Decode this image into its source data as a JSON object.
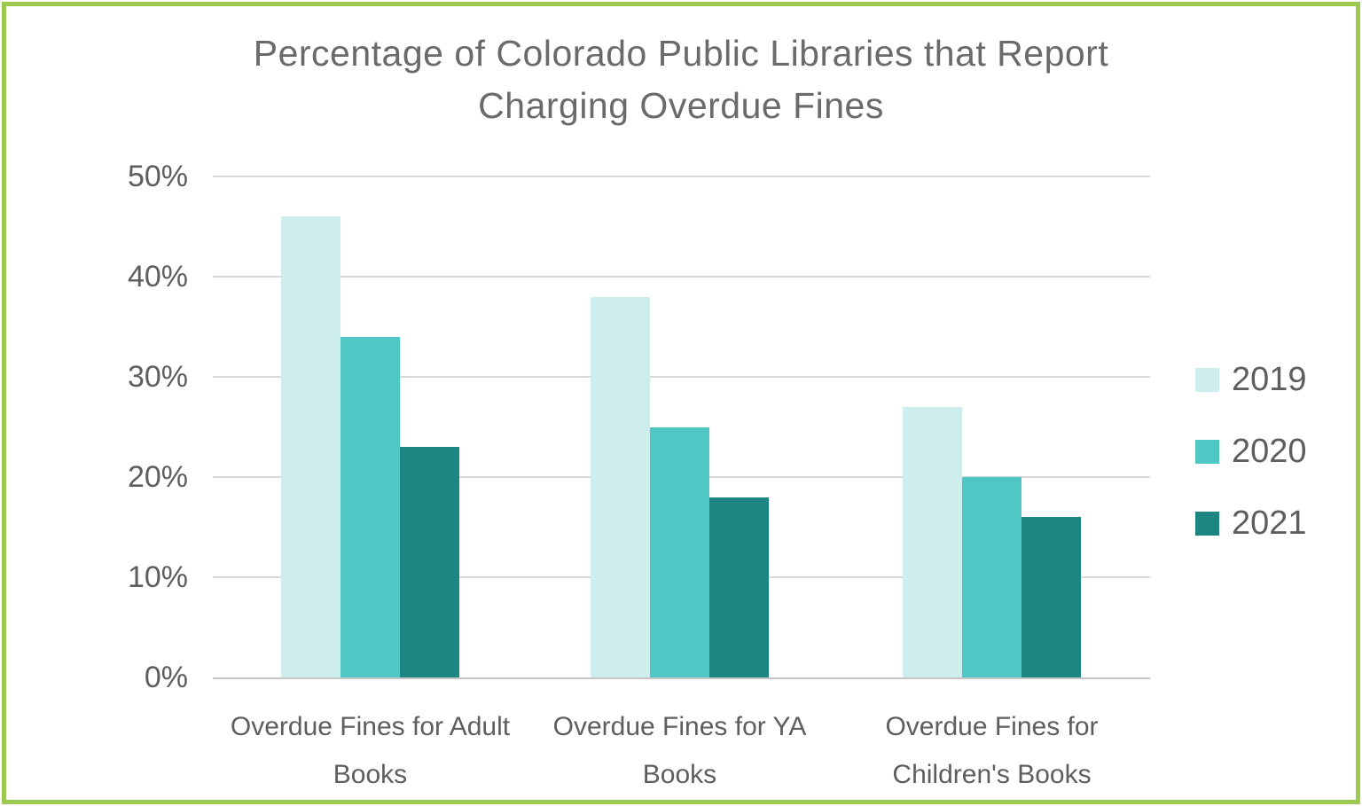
{
  "frame": {
    "border_color": "#9cc950",
    "background_color": "#ffffff"
  },
  "chart_data": {
    "type": "bar",
    "title": "Percentage of Colorado Public Libraries that Report Charging Overdue Fines",
    "categories": [
      "Overdue Fines for Adult Books",
      "Overdue Fines for YA Books",
      "Overdue Fines for Children's Books"
    ],
    "series": [
      {
        "name": "2019",
        "color": "#cdeeec",
        "values": [
          46,
          38,
          27
        ]
      },
      {
        "name": "2020",
        "color": "#4fc7c4",
        "values": [
          34,
          25,
          20
        ]
      },
      {
        "name": "2021",
        "color": "#1e8682",
        "values": [
          23,
          18,
          16
        ]
      }
    ],
    "xlabel": "",
    "ylabel": "",
    "ylim": [
      0,
      50
    ],
    "yticks": [
      {
        "label": "50%",
        "value": 50
      },
      {
        "label": "40%",
        "value": 40
      },
      {
        "label": "30%",
        "value": 30
      },
      {
        "label": "20%",
        "value": 20
      },
      {
        "label": "10%",
        "value": 10
      },
      {
        "label": "0%",
        "value": 0
      }
    ],
    "grid": "horizontal",
    "gridline_color": "#d9d9d9",
    "axis_line_color": "#c6c6c6",
    "text_color": "#5e5e5e",
    "title_color": "#6a6a6a",
    "legend_position": "right"
  }
}
